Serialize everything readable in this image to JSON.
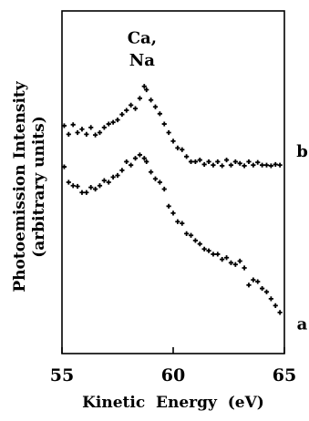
{
  "chart_data": {
    "type": "scatter",
    "title": "",
    "xlabel": "Kinetic  Energy  (eV)",
    "ylabel_line1": "Photoemission Intensity",
    "ylabel_line2": "(arbitrary units)",
    "xlim": [
      55,
      65
    ],
    "ylim": [
      0,
      1
    ],
    "xticks": [
      "55",
      "60",
      "65"
    ],
    "xtick_values": [
      55,
      60,
      65
    ],
    "grid": false,
    "marker": "plus",
    "marker_color": "#000000",
    "annotations": [
      {
        "id": "ca",
        "text": "Ca,",
        "x": 58.6,
        "y": 0.905
      },
      {
        "id": "na",
        "text": "Na",
        "x": 58.6,
        "y": 0.84
      }
    ],
    "series": [
      {
        "name": "b",
        "label_at": {
          "x": 65.8,
          "y": 0.575
        },
        "points": [
          [
            55.1,
            0.665
          ],
          [
            55.3,
            0.64
          ],
          [
            55.5,
            0.668
          ],
          [
            55.7,
            0.645
          ],
          [
            55.9,
            0.655
          ],
          [
            56.1,
            0.64
          ],
          [
            56.3,
            0.66
          ],
          [
            56.5,
            0.638
          ],
          [
            56.7,
            0.645
          ],
          [
            56.9,
            0.66
          ],
          [
            57.1,
            0.67
          ],
          [
            57.3,
            0.675
          ],
          [
            57.5,
            0.682
          ],
          [
            57.7,
            0.698
          ],
          [
            57.9,
            0.71
          ],
          [
            58.1,
            0.725
          ],
          [
            58.3,
            0.715
          ],
          [
            58.5,
            0.745
          ],
          [
            58.7,
            0.78
          ],
          [
            58.8,
            0.77
          ],
          [
            59.0,
            0.74
          ],
          [
            59.2,
            0.72
          ],
          [
            59.4,
            0.7
          ],
          [
            59.6,
            0.67
          ],
          [
            59.8,
            0.645
          ],
          [
            60.0,
            0.62
          ],
          [
            60.2,
            0.6
          ],
          [
            60.4,
            0.595
          ],
          [
            60.6,
            0.575
          ],
          [
            60.8,
            0.56
          ],
          [
            61.0,
            0.56
          ],
          [
            61.2,
            0.565
          ],
          [
            61.4,
            0.552
          ],
          [
            61.6,
            0.56
          ],
          [
            61.8,
            0.55
          ],
          [
            62.0,
            0.56
          ],
          [
            62.2,
            0.548
          ],
          [
            62.4,
            0.565
          ],
          [
            62.6,
            0.55
          ],
          [
            62.8,
            0.56
          ],
          [
            63.0,
            0.555
          ],
          [
            63.2,
            0.548
          ],
          [
            63.4,
            0.56
          ],
          [
            63.6,
            0.55
          ],
          [
            63.8,
            0.558
          ],
          [
            64.0,
            0.55
          ],
          [
            64.2,
            0.55
          ],
          [
            64.4,
            0.548
          ],
          [
            64.6,
            0.552
          ],
          [
            64.8,
            0.55
          ]
        ]
      },
      {
        "name": "a",
        "label_at": {
          "x": 65.8,
          "y": 0.07
        },
        "points": [
          [
            55.1,
            0.545
          ],
          [
            55.3,
            0.5
          ],
          [
            55.5,
            0.49
          ],
          [
            55.7,
            0.488
          ],
          [
            55.9,
            0.47
          ],
          [
            56.1,
            0.47
          ],
          [
            56.3,
            0.485
          ],
          [
            56.5,
            0.48
          ],
          [
            56.7,
            0.49
          ],
          [
            56.9,
            0.505
          ],
          [
            57.1,
            0.5
          ],
          [
            57.3,
            0.515
          ],
          [
            57.5,
            0.52
          ],
          [
            57.7,
            0.535
          ],
          [
            57.9,
            0.56
          ],
          [
            58.1,
            0.55
          ],
          [
            58.3,
            0.57
          ],
          [
            58.5,
            0.58
          ],
          [
            58.7,
            0.57
          ],
          [
            58.8,
            0.56
          ],
          [
            59.0,
            0.53
          ],
          [
            59.2,
            0.51
          ],
          [
            59.4,
            0.5
          ],
          [
            59.6,
            0.48
          ],
          [
            59.8,
            0.43
          ],
          [
            60.0,
            0.41
          ],
          [
            60.2,
            0.385
          ],
          [
            60.4,
            0.38
          ],
          [
            60.6,
            0.35
          ],
          [
            60.8,
            0.345
          ],
          [
            61.0,
            0.33
          ],
          [
            61.2,
            0.32
          ],
          [
            61.4,
            0.305
          ],
          [
            61.6,
            0.3
          ],
          [
            61.8,
            0.29
          ],
          [
            62.0,
            0.29
          ],
          [
            62.2,
            0.275
          ],
          [
            62.4,
            0.28
          ],
          [
            62.6,
            0.265
          ],
          [
            62.8,
            0.26
          ],
          [
            63.0,
            0.27
          ],
          [
            63.2,
            0.25
          ],
          [
            63.4,
            0.2
          ],
          [
            63.6,
            0.215
          ],
          [
            63.8,
            0.21
          ],
          [
            64.0,
            0.19
          ],
          [
            64.2,
            0.18
          ],
          [
            64.4,
            0.16
          ],
          [
            64.6,
            0.14
          ],
          [
            64.8,
            0.12
          ]
        ]
      }
    ]
  }
}
